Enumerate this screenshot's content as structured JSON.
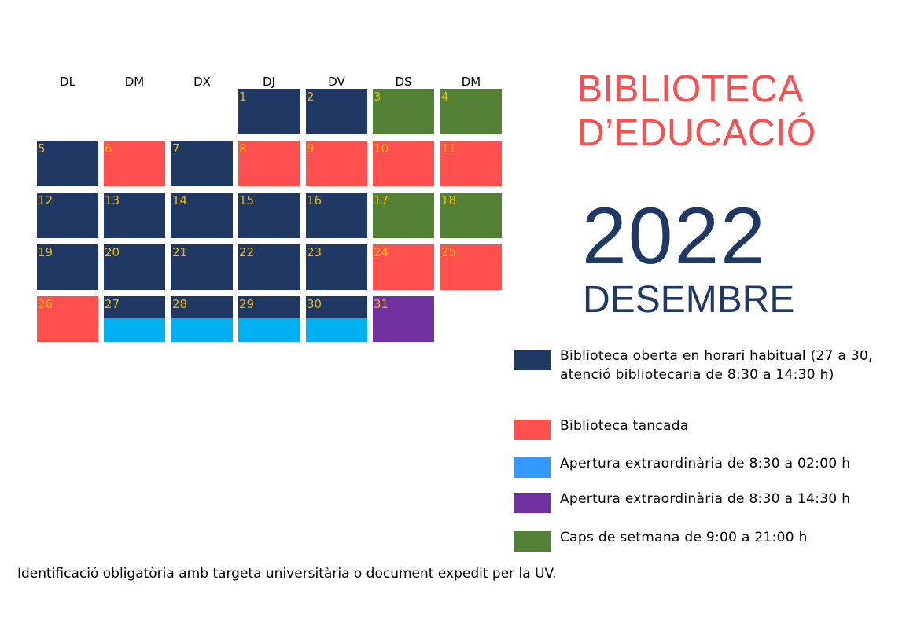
{
  "colors": {
    "open": "#1f3864",
    "closed": "#ff5050",
    "weekend": "#538135",
    "extra_late": "#00b0f0",
    "extra_short": "#7030a0",
    "day_number": "#f5b800",
    "title": "#f55052",
    "legend_extra_late": "#3399ff"
  },
  "weekdays": [
    "DL",
    "DM",
    "DX",
    "DJ",
    "DV",
    "DS",
    "DM"
  ],
  "days": [
    {
      "n": "1",
      "type": "open"
    },
    {
      "n": "2",
      "type": "open"
    },
    {
      "n": "3",
      "type": "weekend"
    },
    {
      "n": "4",
      "type": "weekend"
    },
    {
      "n": "5",
      "type": "open"
    },
    {
      "n": "6",
      "type": "closed"
    },
    {
      "n": "7",
      "type": "open"
    },
    {
      "n": "8",
      "type": "closed"
    },
    {
      "n": "9",
      "type": "closed"
    },
    {
      "n": "10",
      "type": "closed"
    },
    {
      "n": "11",
      "type": "closed"
    },
    {
      "n": "12",
      "type": "open"
    },
    {
      "n": "13",
      "type": "open"
    },
    {
      "n": "14",
      "type": "open"
    },
    {
      "n": "15",
      "type": "open"
    },
    {
      "n": "16",
      "type": "open"
    },
    {
      "n": "17",
      "type": "weekend"
    },
    {
      "n": "18",
      "type": "weekend"
    },
    {
      "n": "19",
      "type": "open"
    },
    {
      "n": "20",
      "type": "open"
    },
    {
      "n": "21",
      "type": "open"
    },
    {
      "n": "22",
      "type": "open"
    },
    {
      "n": "23",
      "type": "open"
    },
    {
      "n": "24",
      "type": "closed"
    },
    {
      "n": "25",
      "type": "closed"
    },
    {
      "n": "26",
      "type": "closed"
    },
    {
      "n": "27",
      "type": "open",
      "bottom": "extra_late"
    },
    {
      "n": "28",
      "type": "open",
      "bottom": "extra_late"
    },
    {
      "n": "29",
      "type": "open",
      "bottom": "extra_late"
    },
    {
      "n": "30",
      "type": "open",
      "bottom": "extra_late"
    },
    {
      "n": "31",
      "type": "extra_short"
    }
  ],
  "title": {
    "line1": "BIBLIOTECA",
    "line2": "D’EDUCACIÓ"
  },
  "year": "2022",
  "month": "DESEMBRE",
  "legend": [
    {
      "text": "Biblioteca oberta en horari habitual (27 a 30, atenció bibliotecaria de 8:30 a 14:30 h)",
      "color": "open"
    },
    {
      "text": "Biblioteca tancada",
      "color": "closed"
    },
    {
      "text": "Apertura extraordinària de 8:30 a 02:00 h",
      "color": "legend_extra_late"
    },
    {
      "text": "Apertura extraordinària de 8:30 a 14:30 h",
      "color": "extra_short"
    },
    {
      "text": "Caps de setmana de 9:00 a 21:00 h",
      "color": "weekend"
    }
  ],
  "note": "Identificació obligatòria amb targeta universitària o document expedit per la UV."
}
